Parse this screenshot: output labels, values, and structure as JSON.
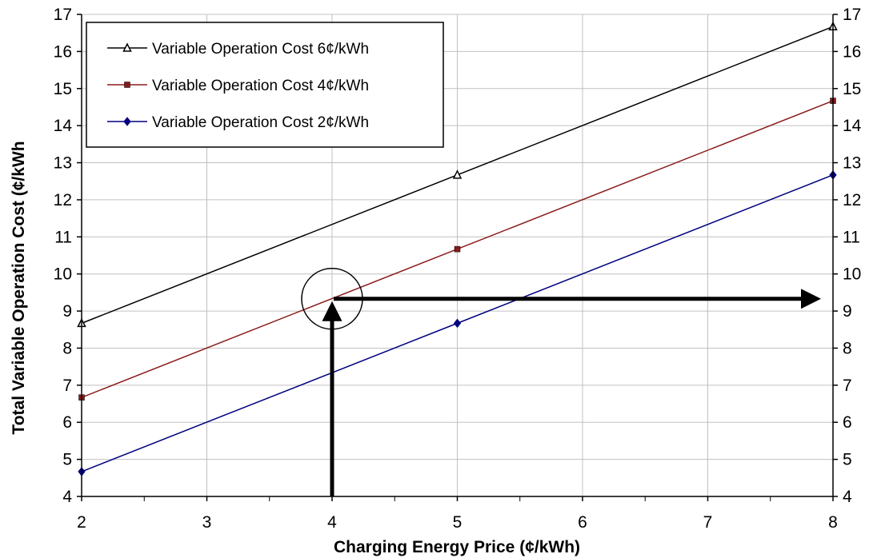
{
  "chart_data": {
    "type": "line",
    "xlabel": "Charging Energy Price (¢/kWh)",
    "ylabel": "Total Variable Operation Cost (¢/kWh",
    "xlim": [
      2,
      8
    ],
    "ylim": [
      4,
      17
    ],
    "x_ticks": [
      "2",
      "3",
      "4",
      "5",
      "6",
      "7",
      "8"
    ],
    "y_ticks": [
      "4",
      "5",
      "6",
      "7",
      "8",
      "9",
      "10",
      "11",
      "12",
      "13",
      "14",
      "15",
      "16",
      "17"
    ],
    "grid": true,
    "secondary_y_axis": true,
    "legend_position": "top-left",
    "series": [
      {
        "name": "Variable Operation Cost 6¢/kWh",
        "color": "#000000",
        "marker": "triangle",
        "x": [
          2,
          5,
          8
        ],
        "y": [
          8.67,
          12.67,
          16.67
        ]
      },
      {
        "name": "Variable Operation Cost 4¢/kWh",
        "color": "#8b1a1a",
        "marker": "square",
        "x": [
          2,
          5,
          8
        ],
        "y": [
          6.67,
          10.67,
          14.67
        ]
      },
      {
        "name": "Variable Operation Cost 2¢/kWh",
        "color": "#000080",
        "marker": "diamond",
        "x": [
          2,
          5,
          8
        ],
        "y": [
          4.67,
          8.67,
          12.67
        ]
      }
    ],
    "annotations": {
      "highlight_point": {
        "x": 4,
        "y": 9.33
      },
      "vertical_arrow_x": 4,
      "horizontal_arrow_y": 9.33
    }
  }
}
